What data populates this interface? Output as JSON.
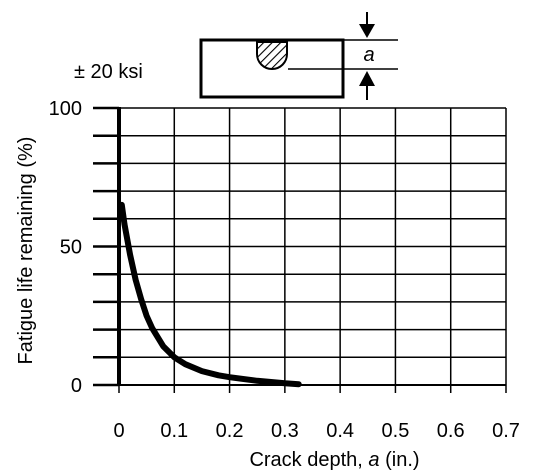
{
  "chart_data": {
    "type": "line",
    "title": "",
    "xlabel_prefix": "Crack depth, ",
    "xlabel_variable": "a",
    "xlabel_suffix": " (in.)",
    "ylabel": "Fatigue life remaining (%)",
    "xlim": [
      0,
      0.7
    ],
    "ylim": [
      0,
      100
    ],
    "x_ticks": [
      0,
      0.1,
      0.2,
      0.3,
      0.4,
      0.5,
      0.6,
      0.7
    ],
    "x_tick_labels": [
      "0",
      "0.1",
      "0.2",
      "0.3",
      "0.4",
      "0.5",
      "0.6",
      "0.7"
    ],
    "y_ticks": [
      0,
      50,
      100
    ],
    "y_tick_labels": [
      "0",
      "50",
      "100"
    ],
    "y_grid_step": 10,
    "grid": true,
    "series": [
      {
        "color": "#000000",
        "x": [
          0.005,
          0.01,
          0.02,
          0.03,
          0.04,
          0.05,
          0.06,
          0.08,
          0.1,
          0.12,
          0.15,
          0.18,
          0.2,
          0.25,
          0.3,
          0.325
        ],
        "y": [
          65,
          58,
          47,
          38,
          31,
          25,
          20.5,
          14,
          10,
          7.5,
          5,
          3.5,
          2.8,
          1.5,
          0.6,
          0.3
        ]
      }
    ]
  },
  "annotations": {
    "stress_label": "± 20 ksi",
    "dimension_label": "a"
  }
}
